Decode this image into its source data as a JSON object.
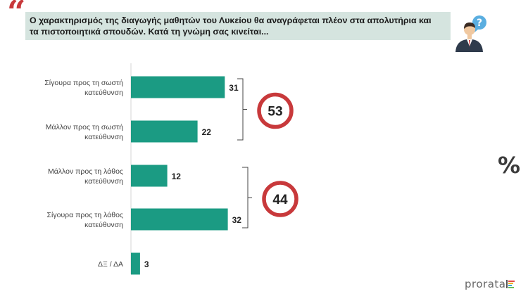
{
  "question": {
    "line1": "Ο χαρακτηρισμός της διαγωγής μαθητών του Λυκείου θα αναγράφεται πλέον στα απολυτήρια και",
    "line2": "τα πιστοποιητικά σπουδών. Κατά τη γνώμη σας κινείται..."
  },
  "unit_symbol": "%",
  "brand": "prorata",
  "colors": {
    "bar": "#1b9b83",
    "ring": "#c8393b",
    "box": "#d5e4df"
  },
  "chart_data": {
    "type": "bar",
    "orientation": "horizontal",
    "categories": [
      [
        "Σίγουρα προς τη σωστή",
        "κατεύθυνση"
      ],
      [
        "Μάλλον προς τη σωστή",
        "κατεύθυνση"
      ],
      [
        "Μάλλον προς τη λάθος",
        "κατεύθυνση"
      ],
      [
        "Σίγουρα προς τη λάθος",
        "κατεύθυνση"
      ],
      [
        "ΔΞ / ΔΑ"
      ]
    ],
    "values": [
      31,
      22,
      12,
      32,
      3
    ],
    "xlim": [
      0,
      40
    ],
    "grid": false,
    "groups": [
      {
        "members": [
          0,
          1
        ],
        "total": 53
      },
      {
        "members": [
          2,
          3
        ],
        "total": 44
      }
    ]
  }
}
